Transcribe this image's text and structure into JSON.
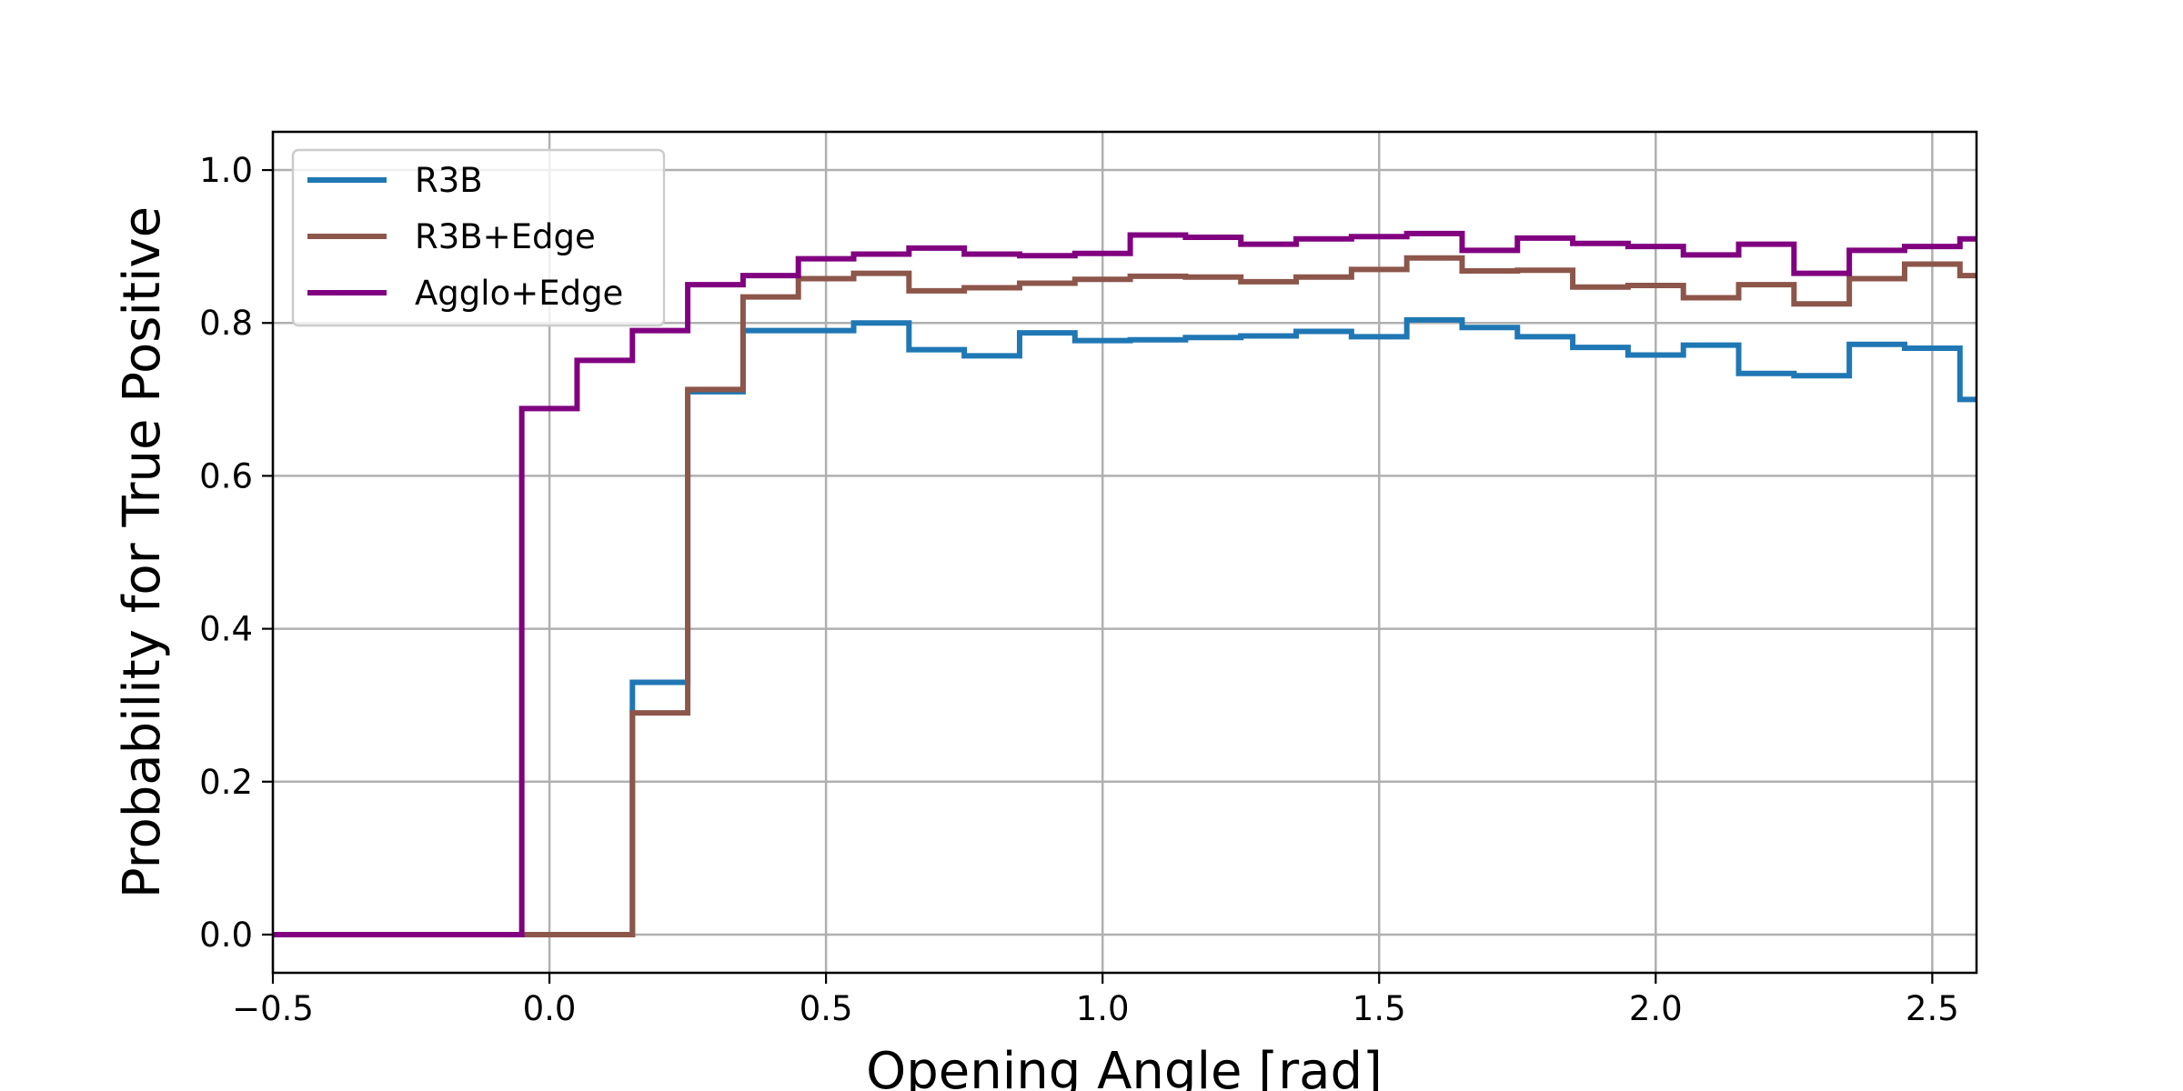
{
  "chart_data": {
    "type": "line",
    "drawstyle": "steps-post",
    "title": "",
    "xlabel": "Opening Angle [rad]",
    "ylabel": "Probability for True Positive",
    "xlim": [
      -0.5,
      2.58
    ],
    "ylim": [
      -0.05,
      1.05
    ],
    "xticks": [
      -0.5,
      0.0,
      0.5,
      1.0,
      1.5,
      2.0,
      2.5
    ],
    "xtick_labels": [
      "−0.5",
      "0.0",
      "0.5",
      "1.0",
      "1.5",
      "2.0",
      "2.5"
    ],
    "yticks": [
      0.0,
      0.2,
      0.4,
      0.6,
      0.8,
      1.0
    ],
    "ytick_labels": [
      "0.0",
      "0.2",
      "0.4",
      "0.6",
      "0.8",
      "1.0"
    ],
    "grid": true,
    "legend_position": "upper-left",
    "x": [
      -0.5,
      -0.45,
      -0.35,
      -0.25,
      -0.15,
      -0.05,
      0.05,
      0.15,
      0.25,
      0.35,
      0.45,
      0.55,
      0.65,
      0.75,
      0.85,
      0.95,
      1.05,
      1.15,
      1.25,
      1.35,
      1.45,
      1.55,
      1.65,
      1.75,
      1.85,
      1.95,
      2.05,
      2.15,
      2.25,
      2.35,
      2.45,
      2.55,
      2.58
    ],
    "series": [
      {
        "name": "R3B",
        "color": "#1f77b4",
        "values": [
          0,
          0,
          0,
          0,
          0,
          0,
          0,
          0.33,
          0.71,
          0.79,
          0.79,
          0.8,
          0.765,
          0.757,
          0.787,
          0.777,
          0.778,
          0.781,
          0.783,
          0.789,
          0.782,
          0.804,
          0.794,
          0.782,
          0.768,
          0.758,
          0.771,
          0.734,
          0.731,
          0.772,
          0.767,
          0.7,
          0.7
        ]
      },
      {
        "name": "R3B+Edge",
        "color": "#8c564b",
        "values": [
          0,
          0,
          0,
          0,
          0,
          0,
          0,
          0.29,
          0.713,
          0.834,
          0.858,
          0.865,
          0.842,
          0.846,
          0.852,
          0.857,
          0.861,
          0.86,
          0.854,
          0.86,
          0.87,
          0.885,
          0.868,
          0.869,
          0.847,
          0.849,
          0.833,
          0.85,
          0.825,
          0.858,
          0.877,
          0.862,
          0.862
        ]
      },
      {
        "name": "Agglo+Edge",
        "color": "#800080",
        "values": [
          0,
          0,
          0,
          0,
          0,
          0.688,
          0.751,
          0.79,
          0.85,
          0.862,
          0.884,
          0.89,
          0.898,
          0.89,
          0.888,
          0.891,
          0.915,
          0.912,
          0.903,
          0.91,
          0.913,
          0.917,
          0.895,
          0.911,
          0.904,
          0.9,
          0.889,
          0.903,
          0.865,
          0.895,
          0.9,
          0.91,
          0.91
        ]
      }
    ]
  }
}
